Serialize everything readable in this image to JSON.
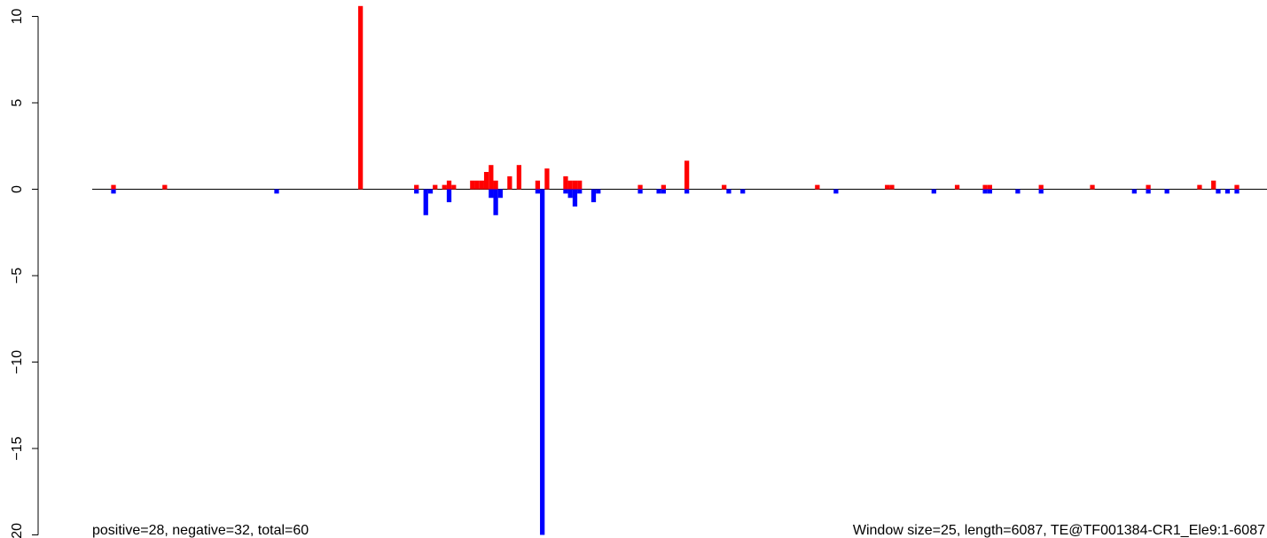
{
  "chart_data": {
    "type": "bar",
    "title": "",
    "xlabel": "",
    "ylabel": "",
    "ylim": [
      -20,
      11
    ],
    "xlim": [
      1,
      6087
    ],
    "yticks": [
      10,
      5,
      0,
      -5,
      -10,
      -15,
      -20
    ],
    "ytick_labels": [
      "10",
      "5",
      "0",
      "−5",
      "−10",
      "−15",
      "−20"
    ],
    "baseline": 0,
    "bar_width": 25,
    "axis_color": "#000000",
    "grid": false,
    "series": [
      {
        "color": "#ff0000",
        "x": [
          125,
          400,
          1450,
          1750,
          1850,
          1900,
          1925,
          1950,
          2050,
          2075,
          2100,
          2125,
          2150,
          2175,
          2250,
          2300,
          2400,
          2450,
          2550,
          2575,
          2600,
          2625,
          2950,
          3075,
          3200,
          3400,
          3900,
          4275,
          4300,
          4650,
          4800,
          4825,
          5100,
          5375,
          5675,
          5950,
          6025,
          6150
        ],
        "values": [
          0.25,
          0.25,
          10.6,
          0.25,
          0.25,
          0.25,
          0.5,
          0.25,
          0.5,
          0.5,
          0.5,
          1.0,
          1.4,
          0.5,
          0.75,
          1.4,
          0.5,
          1.2,
          0.75,
          0.5,
          0.5,
          0.5,
          0.25,
          0.25,
          1.65,
          0.25,
          0.25,
          0.25,
          0.25,
          0.25,
          0.25,
          0.25,
          0.25,
          0.25,
          0.25,
          0.25,
          0.5,
          0.25
        ]
      },
      {
        "color": "#0000ff",
        "x": [
          125,
          1000,
          1750,
          1800,
          1825,
          1925,
          2150,
          2175,
          2200,
          2400,
          2425,
          2550,
          2575,
          2600,
          2625,
          2700,
          2725,
          2950,
          3050,
          3075,
          3200,
          3425,
          3500,
          4000,
          4525,
          4800,
          4825,
          4975,
          5100,
          5600,
          5675,
          5775,
          6050,
          6100,
          6150
        ],
        "values": [
          -0.25,
          -0.25,
          -0.25,
          -1.5,
          -0.25,
          -0.75,
          -0.5,
          -1.5,
          -0.5,
          -0.25,
          -20.0,
          -0.25,
          -0.5,
          -1.0,
          -0.25,
          -0.75,
          -0.25,
          -0.25,
          -0.25,
          -0.25,
          -0.25,
          -0.25,
          -0.25,
          -0.25,
          -0.25,
          -0.25,
          -0.25,
          -0.25,
          -0.25,
          -0.25,
          -0.25,
          -0.25,
          -0.25,
          -0.25,
          -0.25
        ]
      }
    ],
    "annotations": {
      "left": "positive=28, negative=32, total=60",
      "right": "Window size=25, length=6087, TE@TF001384-CR1_Ele9:1-6087"
    }
  }
}
